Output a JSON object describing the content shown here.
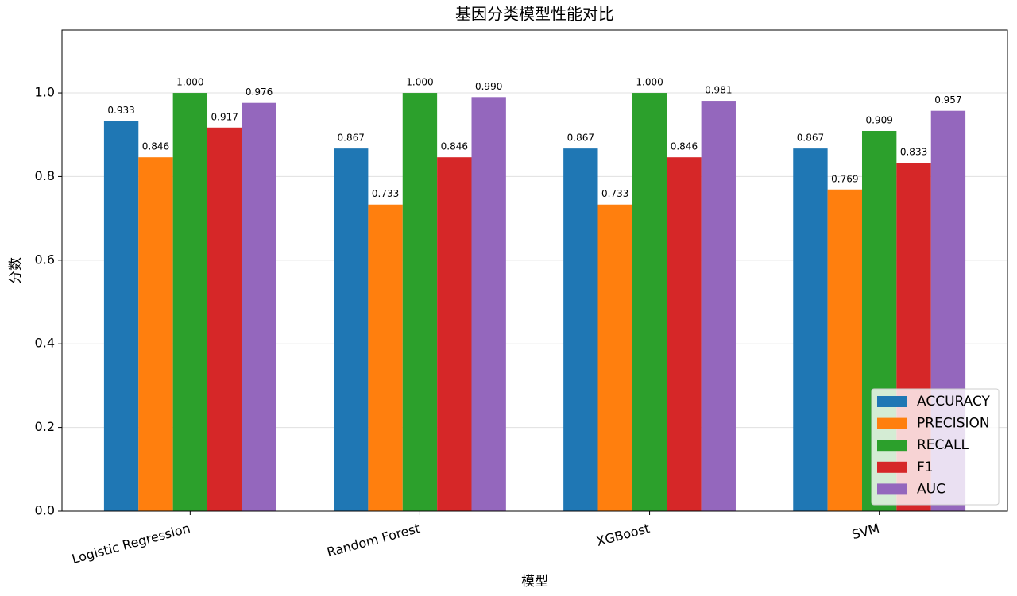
{
  "chart_data": {
    "type": "bar",
    "title": "基因分类模型性能对比",
    "x_label": "模型",
    "y_label": "分数",
    "categories": [
      "Logistic Regression",
      "Random Forest",
      "XGBoost",
      "SVM"
    ],
    "series": [
      {
        "name": "ACCURACY",
        "color": "#1f77b4",
        "values": [
          0.933,
          0.867,
          0.867,
          0.867
        ],
        "value_labels": [
          "0.933",
          "0.867",
          "0.867",
          "0.867"
        ]
      },
      {
        "name": "PRECISION",
        "color": "#ff7f0e",
        "values": [
          0.846,
          0.733,
          0.733,
          0.769
        ],
        "value_labels": [
          "0.846",
          "0.733",
          "0.733",
          "0.769"
        ]
      },
      {
        "name": "RECALL",
        "color": "#2ca02c",
        "values": [
          1.0,
          1.0,
          1.0,
          0.909
        ],
        "value_labels": [
          "1.000",
          "1.000",
          "1.000",
          "0.909"
        ]
      },
      {
        "name": "F1",
        "color": "#d62728",
        "values": [
          0.917,
          0.846,
          0.846,
          0.833
        ],
        "value_labels": [
          "0.917",
          "0.846",
          "0.846",
          "0.833"
        ]
      },
      {
        "name": "AUC",
        "color": "#9467bd",
        "values": [
          0.976,
          0.99,
          0.981,
          0.957
        ],
        "value_labels": [
          "0.976",
          "0.990",
          "0.981",
          "0.957"
        ]
      }
    ],
    "ylim": [
      0,
      1.15
    ],
    "yticks": [
      {
        "value": 0,
        "label": "0.0"
      },
      0.2,
      0.4,
      0.6,
      0.8,
      {
        "value": 1,
        "label": "1.0"
      }
    ],
    "grid": true,
    "legend": "lower right"
  }
}
